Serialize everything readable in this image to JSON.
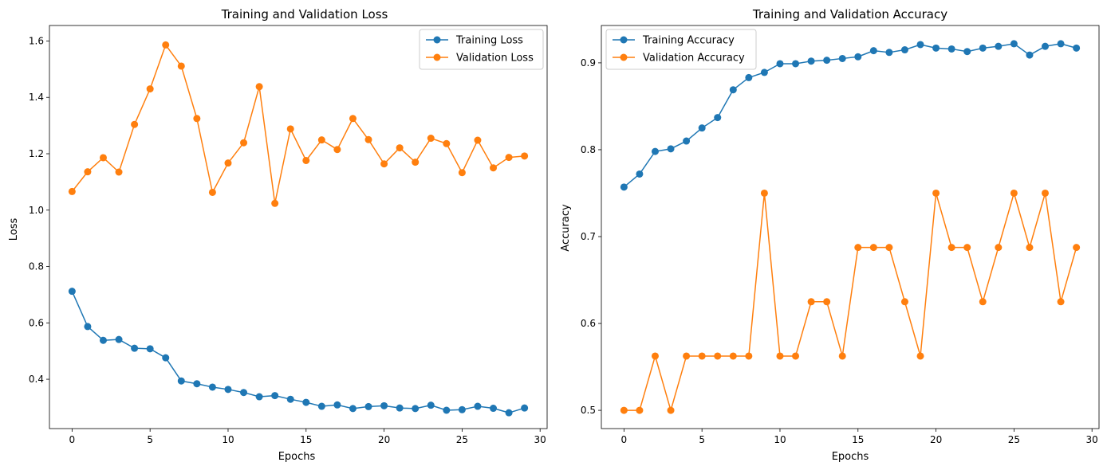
{
  "figure": {
    "background": "#ffffff"
  },
  "chart_data": [
    {
      "type": "line",
      "title": "Training and Validation Loss",
      "xlabel": "Epochs",
      "ylabel": "Loss",
      "xlim": [
        -1.45,
        30.45
      ],
      "ylim": [
        0.225,
        1.655
      ],
      "xticks": [
        0,
        5,
        10,
        15,
        20,
        25,
        30
      ],
      "yticks": [
        0.4,
        0.6,
        0.8,
        1.0,
        1.2,
        1.4,
        1.6
      ],
      "ytick_labels": [
        "0.4",
        "0.6",
        "0.8",
        "1.0",
        "1.2",
        "1.4",
        "1.6"
      ],
      "grid": false,
      "legend_position": "top-right",
      "x": [
        0,
        1,
        2,
        3,
        4,
        5,
        6,
        7,
        8,
        9,
        10,
        11,
        12,
        13,
        14,
        15,
        16,
        17,
        18,
        19,
        20,
        21,
        22,
        23,
        24,
        25,
        26,
        27,
        28,
        29
      ],
      "series": [
        {
          "name": "Training Loss",
          "color": "#1f77b4",
          "values": [
            0.712,
            0.587,
            0.538,
            0.541,
            0.51,
            0.508,
            0.476,
            0.394,
            0.384,
            0.372,
            0.364,
            0.353,
            0.338,
            0.342,
            0.329,
            0.318,
            0.304,
            0.309,
            0.296,
            0.303,
            0.306,
            0.298,
            0.296,
            0.308,
            0.29,
            0.292,
            0.304,
            0.297,
            0.281,
            0.298
          ]
        },
        {
          "name": "Validation Loss",
          "color": "#ff7f0e",
          "values": [
            1.066,
            1.136,
            1.186,
            1.135,
            1.304,
            1.43,
            1.586,
            1.511,
            1.325,
            1.063,
            1.167,
            1.239,
            1.438,
            1.024,
            1.288,
            1.176,
            1.249,
            1.215,
            1.325,
            1.25,
            1.164,
            1.221,
            1.17,
            1.255,
            1.236,
            1.133,
            1.248,
            1.15,
            1.187,
            1.192
          ]
        }
      ]
    },
    {
      "type": "line",
      "title": "Training and Validation Accuracy",
      "xlabel": "Epochs",
      "ylabel": "Accuracy",
      "xlim": [
        -1.45,
        30.45
      ],
      "ylim": [
        0.479,
        0.943
      ],
      "xticks": [
        0,
        5,
        10,
        15,
        20,
        25,
        30
      ],
      "yticks": [
        0.5,
        0.6,
        0.7,
        0.8,
        0.9
      ],
      "ytick_labels": [
        "0.5",
        "0.6",
        "0.7",
        "0.8",
        "0.9"
      ],
      "grid": false,
      "legend_position": "top-left",
      "x": [
        0,
        1,
        2,
        3,
        4,
        5,
        6,
        7,
        8,
        9,
        10,
        11,
        12,
        13,
        14,
        15,
        16,
        17,
        18,
        19,
        20,
        21,
        22,
        23,
        24,
        25,
        26,
        27,
        28,
        29
      ],
      "series": [
        {
          "name": "Training Accuracy",
          "color": "#1f77b4",
          "values": [
            0.757,
            0.772,
            0.798,
            0.801,
            0.81,
            0.825,
            0.837,
            0.869,
            0.883,
            0.889,
            0.899,
            0.899,
            0.902,
            0.903,
            0.905,
            0.907,
            0.914,
            0.912,
            0.915,
            0.921,
            0.917,
            0.916,
            0.913,
            0.917,
            0.919,
            0.922,
            0.909,
            0.919,
            0.922,
            0.917
          ]
        },
        {
          "name": "Validation Accuracy",
          "color": "#ff7f0e",
          "values": [
            0.5,
            0.5,
            0.5625,
            0.5,
            0.5625,
            0.5625,
            0.5625,
            0.5625,
            0.5625,
            0.75,
            0.5625,
            0.5625,
            0.625,
            0.625,
            0.5625,
            0.6875,
            0.6875,
            0.6875,
            0.625,
            0.5625,
            0.75,
            0.6875,
            0.6875,
            0.625,
            0.6875,
            0.75,
            0.6875,
            0.75,
            0.625,
            0.6875
          ]
        }
      ]
    }
  ]
}
